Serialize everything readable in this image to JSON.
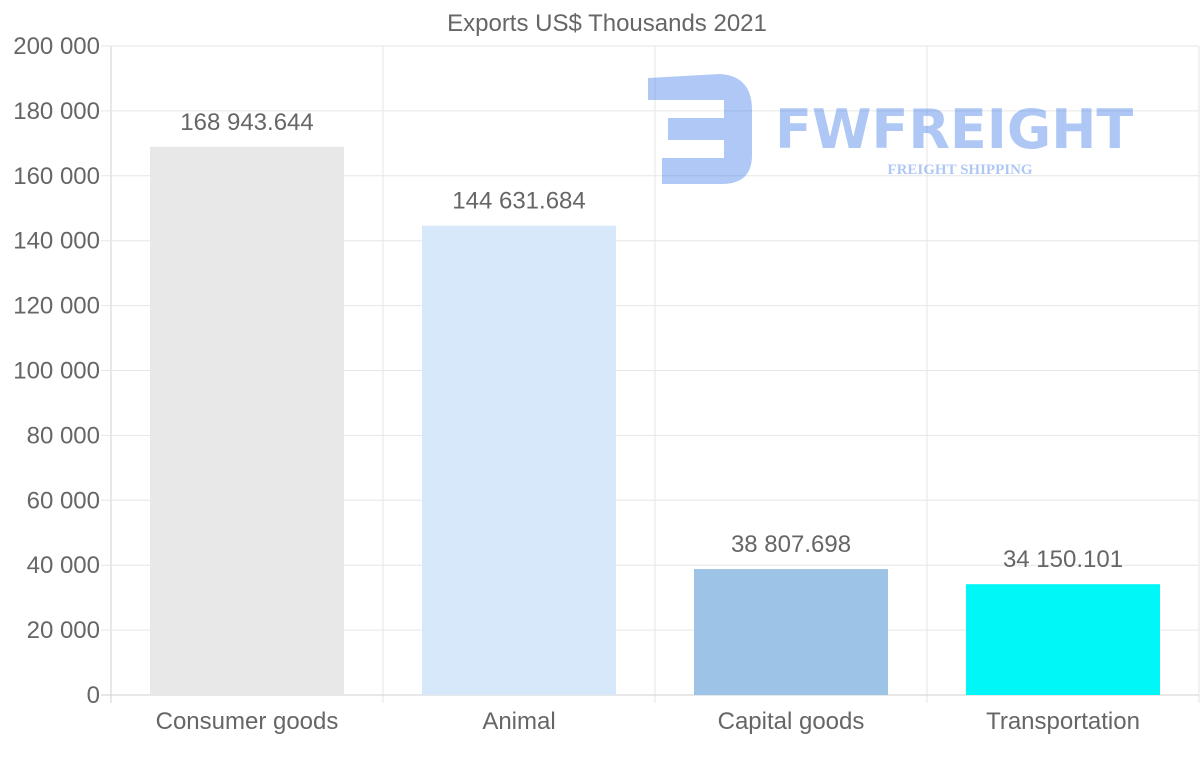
{
  "chart_data": {
    "type": "bar",
    "title": "Exports US$ Thousands 2021",
    "categories": [
      "Consumer goods",
      "Animal",
      "Capital goods",
      "Transportation"
    ],
    "values": [
      168943.644,
      144631.684,
      38807.698,
      34150.101
    ],
    "value_labels": [
      "168 943.644",
      "144 631.684",
      "38 807.698",
      "34 150.101"
    ],
    "colors": [
      "#e8e8e8",
      "#d6e8fa",
      "#9dc3e6",
      "#00f7f7"
    ],
    "ylim": [
      0,
      200000
    ],
    "yticks": [
      0,
      20000,
      40000,
      60000,
      80000,
      100000,
      120000,
      140000,
      160000,
      180000,
      200000
    ],
    "ytick_labels": [
      "0",
      "20 000",
      "40 000",
      "60 000",
      "80 000",
      "100 000",
      "120 000",
      "140 000",
      "160 000",
      "180 000",
      "200 000"
    ],
    "xlabel": "",
    "ylabel": "",
    "grid": true,
    "legend": "none"
  },
  "watermark": {
    "brand": "FWFREIGHT",
    "tagline": "FREIGHT SHIPPING",
    "color": "#2e6fe6"
  }
}
